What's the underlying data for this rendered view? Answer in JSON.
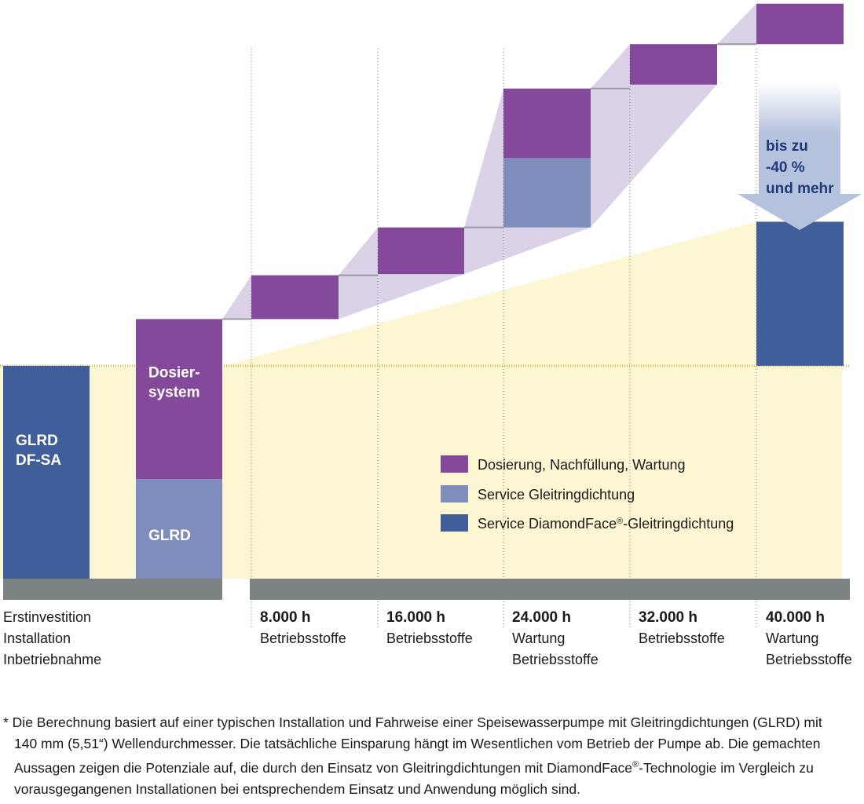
{
  "colors": {
    "dosierung": "#84499a",
    "service_glrd": "#7f8dbd",
    "service_diamondface": "#405e99",
    "glrd_dfsa": "#405e99",
    "purple_band": "#dcd2e8",
    "yellow_area": "#fdf6d2",
    "axis_bar": "#7d8283",
    "arrow": "#b5c2dd",
    "arrow_text": "#1f3a78"
  },
  "chart_data": {
    "type": "stacked-waterfall-bar",
    "title": "",
    "ylabel": "",
    "categories": [
      "Erstinvestition",
      "Installation",
      "8.000 h",
      "16.000 h",
      "24.000 h",
      "32.000 h",
      "40.000 h"
    ],
    "x_labels": [
      {
        "main": "",
        "sub": [
          "Erstinvestition",
          "Installation",
          "Inbetriebnahme"
        ]
      },
      {
        "main": "8.000 h",
        "sub": [
          "Betriebsstoffe"
        ]
      },
      {
        "main": "16.000 h",
        "sub": [
          "Betriebsstoffe"
        ]
      },
      {
        "main": "24.000 h",
        "sub": [
          "Wartung",
          "Betriebsstoffe"
        ]
      },
      {
        "main": "32.000 h",
        "sub": [
          "Betriebsstoffe"
        ]
      },
      {
        "main": "40.000 h",
        "sub": [
          "Wartung",
          "Betriebsstoffe"
        ]
      }
    ],
    "units": "relative cost (unlabeled)",
    "ylim": [
      0,
      100
    ],
    "series": [
      {
        "name": "GLRD DF-SA",
        "color_key": "glrd_dfsa",
        "bars": [
          {
            "slot": 0,
            "base": 0,
            "value": 37.4,
            "label": [
              "GLRD",
              "DF-SA"
            ]
          }
        ]
      },
      {
        "name": "Service Gleitringdichtung",
        "color_key": "service_glrd",
        "bars": [
          {
            "slot": 1,
            "base": 0,
            "value": 17.5,
            "label": [
              "GLRD"
            ]
          },
          {
            "slot": 4,
            "base": 61.7,
            "value": 12.2
          }
        ]
      },
      {
        "name": "Dosierung, Nachfüllung, Wartung",
        "color_key": "dosierung",
        "bars": [
          {
            "slot": 1,
            "base": 17.5,
            "value": 28.1,
            "label": [
              "Dosier-",
              "system"
            ]
          },
          {
            "slot": 2,
            "base": 45.6,
            "value": 7.7
          },
          {
            "slot": 3,
            "base": 53.5,
            "value": 8.2
          },
          {
            "slot": 4,
            "base": 73.9,
            "value": 12.2
          },
          {
            "slot": 5,
            "base": 86.8,
            "value": 7.1
          },
          {
            "slot": 6,
            "base": 93.9,
            "value": 7.1
          }
        ]
      },
      {
        "name": "Service DiamondFace®-Gleitringdichtung",
        "color_key": "service_diamondface",
        "bars": [
          {
            "slot": 6,
            "base": 37.4,
            "value": 25.3
          }
        ]
      }
    ],
    "legend": [
      {
        "label": "Dosierung, Nachfüllung, Wartung",
        "color_key": "dosierung"
      },
      {
        "label": "Service Gleitringdichtung",
        "color_key": "service_glrd"
      },
      {
        "label": "Service DiamondFace",
        "sup": "®",
        "label_after": "-Gleitringdichtung",
        "color_key": "service_diamondface"
      }
    ],
    "legend_position": "center-right",
    "annotation": {
      "lines": [
        "bis zu",
        "-40 %",
        "und mehr"
      ],
      "target_slot": 6
    }
  },
  "footnote": {
    "lines": [
      "* Die Berechnung basiert auf einer typischen Installation und Fahrweise einer Speisewasserpumpe mit Gleitringdichtungen (GLRD) mit",
      "140 mm (5,51“) Wellendurchmesser. Die tatsächliche Einsparung hängt im Wesentlichen vom Betrieb der Pumpe ab. Die gemachten",
      "Aussagen zeigen die Potenziale auf, die durch den Einsatz von Gleitringdichtungen mit DiamondFace",
      "vorausgegangenen Installationen bei entsprechendem Einsatz und Anwendung möglich sind."
    ],
    "sup": "®",
    "line3_after": "-Technologie im Vergleich zu"
  }
}
